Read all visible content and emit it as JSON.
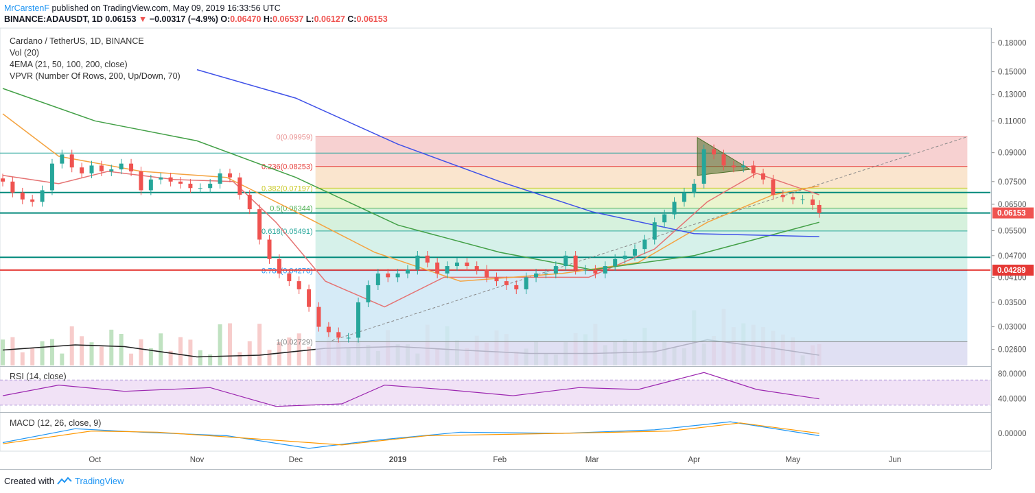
{
  "header": {
    "author": "MrCarstenF",
    "published_text": "published on TradingView.com, May 09, 2019 16:33:56 UTC"
  },
  "symbol_line": {
    "symbol": "BINANCE:ADAUSDT, 1D",
    "last": "0.06153",
    "change": "−0.00317 (−4.9%)",
    "open": "0.06470",
    "high": "0.06537",
    "low": "0.06127",
    "close": "0.06153",
    "o_label": "O:",
    "h_label": "H:",
    "l_label": "L:",
    "c_label": "C:"
  },
  "legend": {
    "title": "Cardano / TetherUS, 1D, BINANCE",
    "vol": "Vol (20)",
    "ema": "4EMA (21, 50, 100, 200, close)",
    "vpvr": "VPVR (Number Of Rows, 200, Up/Down, 70)"
  },
  "panels": {
    "rsi_label": "RSI (14, close)",
    "macd_label": "MACD (12, 26, close, 9)"
  },
  "footer": {
    "prefix": "Created with",
    "brand": "TradingView"
  },
  "colors": {
    "up": "#26a69a",
    "down": "#ef5350",
    "ema21": "#e57373",
    "ema50": "#f4a340",
    "ema100": "#43a047",
    "ema200": "#3f51e8",
    "volume_ma": "#212121",
    "rsi": "#9c27b0",
    "macd": "#2196f3",
    "signal": "#ff9800",
    "support": "#00897b",
    "resistance": "#e53935"
  },
  "chart_data": [
    {
      "type": "candlestick",
      "title": "Cardano / TetherUS, 1D, BINANCE",
      "scale": "log",
      "ylim": [
        0.0235,
        0.195
      ],
      "price_ticks": [
        "0.18000",
        "0.15000",
        "0.13000",
        "0.11000",
        "0.09000",
        "0.07500",
        "0.06500",
        "0.05500",
        "0.04700",
        "0.04100",
        "0.03500",
        "0.03000",
        "0.02600"
      ],
      "x_ticks": [
        "Oct",
        "Nov",
        "Dec",
        "2019",
        "Feb",
        "Mar",
        "Apr",
        "May",
        "Jun"
      ],
      "x_tick_dates": [
        "2018-10-01",
        "2018-11-01",
        "2018-12-01",
        "2019-01-01",
        "2019-02-01",
        "2019-03-01",
        "2019-04-01",
        "2019-05-01",
        "2019-06-01"
      ],
      "date_range": [
        "2018-09-03",
        "2019-06-30"
      ],
      "current_price": "0.06153",
      "marked_price": "0.04289",
      "closes": [
        [
          "2018-09-03",
          0.075
        ],
        [
          "2018-09-06",
          0.07
        ],
        [
          "2018-09-09",
          0.067
        ],
        [
          "2018-09-12",
          0.066
        ],
        [
          "2018-09-15",
          0.071
        ],
        [
          "2018-09-18",
          0.084
        ],
        [
          "2018-09-21",
          0.089
        ],
        [
          "2018-09-24",
          0.082
        ],
        [
          "2018-09-27",
          0.079
        ],
        [
          "2018-09-30",
          0.083
        ],
        [
          "2018-10-03",
          0.08
        ],
        [
          "2018-10-06",
          0.081
        ],
        [
          "2018-10-09",
          0.084
        ],
        [
          "2018-10-12",
          0.08
        ],
        [
          "2018-10-15",
          0.071
        ],
        [
          "2018-10-18",
          0.076
        ],
        [
          "2018-10-21",
          0.077
        ],
        [
          "2018-10-24",
          0.075
        ],
        [
          "2018-10-27",
          0.074
        ],
        [
          "2018-10-30",
          0.072
        ],
        [
          "2018-11-02",
          0.072
        ],
        [
          "2018-11-05",
          0.074
        ],
        [
          "2018-11-08",
          0.079
        ],
        [
          "2018-11-11",
          0.077
        ],
        [
          "2018-11-14",
          0.069
        ],
        [
          "2018-11-17",
          0.063
        ],
        [
          "2018-11-20",
          0.052
        ],
        [
          "2018-11-23",
          0.046
        ],
        [
          "2018-11-26",
          0.042
        ],
        [
          "2018-11-29",
          0.04
        ],
        [
          "2018-12-02",
          0.038
        ],
        [
          "2018-12-05",
          0.034
        ],
        [
          "2018-12-08",
          0.03
        ],
        [
          "2018-12-11",
          0.029
        ],
        [
          "2018-12-14",
          0.028
        ],
        [
          "2018-12-17",
          0.028
        ],
        [
          "2018-12-20",
          0.035
        ],
        [
          "2018-12-23",
          0.039
        ],
        [
          "2018-12-26",
          0.042
        ],
        [
          "2018-12-29",
          0.041
        ],
        [
          "2019-01-01",
          0.042
        ],
        [
          "2019-01-04",
          0.043
        ],
        [
          "2019-01-07",
          0.047
        ],
        [
          "2019-01-10",
          0.045
        ],
        [
          "2019-01-13",
          0.042
        ],
        [
          "2019-01-16",
          0.044
        ],
        [
          "2019-01-19",
          0.045
        ],
        [
          "2019-01-22",
          0.044
        ],
        [
          "2019-01-25",
          0.043
        ],
        [
          "2019-01-28",
          0.041
        ],
        [
          "2019-01-31",
          0.04
        ],
        [
          "2019-02-03",
          0.039
        ],
        [
          "2019-02-06",
          0.038
        ],
        [
          "2019-02-09",
          0.041
        ],
        [
          "2019-02-12",
          0.042
        ],
        [
          "2019-02-15",
          0.042
        ],
        [
          "2019-02-18",
          0.044
        ],
        [
          "2019-02-21",
          0.047
        ],
        [
          "2019-02-24",
          0.043
        ],
        [
          "2019-02-27",
          0.043
        ],
        [
          "2019-03-02",
          0.042
        ],
        [
          "2019-03-05",
          0.044
        ],
        [
          "2019-03-08",
          0.046
        ],
        [
          "2019-03-11",
          0.047
        ],
        [
          "2019-03-14",
          0.049
        ],
        [
          "2019-03-17",
          0.052
        ],
        [
          "2019-03-20",
          0.058
        ],
        [
          "2019-03-23",
          0.061
        ],
        [
          "2019-03-26",
          0.066
        ],
        [
          "2019-03-29",
          0.07
        ],
        [
          "2019-04-01",
          0.074
        ],
        [
          "2019-04-04",
          0.092
        ],
        [
          "2019-04-07",
          0.089
        ],
        [
          "2019-04-10",
          0.083
        ],
        [
          "2019-04-13",
          0.082
        ],
        [
          "2019-04-16",
          0.083
        ],
        [
          "2019-04-19",
          0.079
        ],
        [
          "2019-04-22",
          0.076
        ],
        [
          "2019-04-25",
          0.069
        ],
        [
          "2019-04-28",
          0.068
        ],
        [
          "2019-05-01",
          0.067
        ],
        [
          "2019-05-04",
          0.067
        ],
        [
          "2019-05-07",
          0.0647
        ],
        [
          "2019-05-09",
          0.06153
        ]
      ],
      "fibonacci": [
        {
          "label": "0(0.09959)",
          "value": 0.09959,
          "color": "#e98f8f"
        },
        {
          "label": "0.236(0.08253)",
          "value": 0.08253,
          "color": "#e53935"
        },
        {
          "label": "0.382(0.07197)",
          "value": 0.07197,
          "color": "#c8c820"
        },
        {
          "label": "0.5(0.06344)",
          "value": 0.06344,
          "color": "#4caf50"
        },
        {
          "label": "0.618(0.05491)",
          "value": 0.05491,
          "color": "#26a69a"
        },
        {
          "label": "0.786(0.04276)",
          "value": 0.04276,
          "color": "#2196f3"
        },
        {
          "label": "1(0.02729)",
          "value": 0.02729,
          "color": "#888888"
        }
      ],
      "fib_start_date": "2018-12-07",
      "fib_end_date": "2019-06-23",
      "horizontal_lines": [
        {
          "value": 0.0898,
          "color": "#26a69a"
        },
        {
          "value": 0.07,
          "color": "#00897b"
        },
        {
          "value": 0.0615,
          "color": "#00897b"
        },
        {
          "value": 0.0465,
          "color": "#00897b"
        },
        {
          "value": 0.0429,
          "color": "#e53935"
        }
      ],
      "ema": {
        "ema21": [
          [
            "2018-09-03",
            0.078
          ],
          [
            "2018-09-20",
            0.074
          ],
          [
            "2018-10-05",
            0.08
          ],
          [
            "2018-10-25",
            0.076
          ],
          [
            "2018-11-12",
            0.075
          ],
          [
            "2018-11-25",
            0.058
          ],
          [
            "2018-12-10",
            0.04
          ],
          [
            "2018-12-28",
            0.034
          ],
          [
            "2019-01-15",
            0.041
          ],
          [
            "2019-02-05",
            0.041
          ],
          [
            "2019-02-28",
            0.041
          ],
          [
            "2019-03-20",
            0.049
          ],
          [
            "2019-04-05",
            0.066
          ],
          [
            "2019-04-20",
            0.079
          ],
          [
            "2019-05-09",
            0.069
          ]
        ],
        "ema50": [
          [
            "2018-09-03",
            0.115
          ],
          [
            "2018-09-20",
            0.088
          ],
          [
            "2018-10-15",
            0.08
          ],
          [
            "2018-11-10",
            0.077
          ],
          [
            "2018-12-01",
            0.062
          ],
          [
            "2018-12-25",
            0.048
          ],
          [
            "2019-01-20",
            0.04
          ],
          [
            "2019-02-20",
            0.042
          ],
          [
            "2019-03-15",
            0.045
          ],
          [
            "2019-04-05",
            0.058
          ],
          [
            "2019-04-25",
            0.069
          ],
          [
            "2019-05-09",
            0.073
          ]
        ],
        "ema100": [
          [
            "2018-09-03",
            0.135
          ],
          [
            "2018-10-01",
            0.11
          ],
          [
            "2018-11-01",
            0.097
          ],
          [
            "2018-12-01",
            0.077
          ],
          [
            "2019-01-01",
            0.057
          ],
          [
            "2019-02-01",
            0.048
          ],
          [
            "2019-03-01",
            0.043
          ],
          [
            "2019-04-01",
            0.047
          ],
          [
            "2019-05-09",
            0.058
          ]
        ],
        "ema200": [
          [
            "2018-11-01",
            0.152
          ],
          [
            "2018-12-01",
            0.127
          ],
          [
            "2019-01-01",
            0.095
          ],
          [
            "2019-02-01",
            0.075
          ],
          [
            "2019-03-01",
            0.062
          ],
          [
            "2019-04-01",
            0.054
          ],
          [
            "2019-05-09",
            0.053
          ]
        ]
      },
      "triangle": [
        [
          "2019-04-02",
          0.099
        ],
        [
          "2019-04-02",
          0.078
        ],
        [
          "2019-04-18",
          0.081
        ]
      ],
      "trend_line": [
        [
          "2018-12-12",
          0.0275
        ],
        [
          "2019-06-23",
          0.0995
        ]
      ]
    },
    {
      "type": "bar",
      "title": "Vol (20)",
      "volume_ma": [
        [
          "2018-09-03",
          0.45
        ],
        [
          "2018-09-25",
          0.6
        ],
        [
          "2018-10-10",
          0.55
        ],
        [
          "2018-11-01",
          0.25
        ],
        [
          "2018-11-20",
          0.3
        ],
        [
          "2018-12-10",
          0.5
        ],
        [
          "2019-01-01",
          0.55
        ],
        [
          "2019-01-20",
          0.45
        ],
        [
          "2019-02-10",
          0.35
        ],
        [
          "2019-03-01",
          0.35
        ],
        [
          "2019-03-20",
          0.4
        ],
        [
          "2019-04-05",
          0.75
        ],
        [
          "2019-04-25",
          0.5
        ],
        [
          "2019-05-09",
          0.3
        ]
      ]
    },
    {
      "type": "line",
      "title": "RSI (14, close)",
      "y_ticks": [
        "80.0000",
        "40.0000"
      ],
      "band": [
        30,
        70
      ],
      "series": [
        {
          "values": [
            [
              "2018-09-03",
              45
            ],
            [
              "2018-09-20",
              62
            ],
            [
              "2018-10-10",
              52
            ],
            [
              "2018-11-05",
              58
            ],
            [
              "2018-11-25",
              28
            ],
            [
              "2018-12-15",
              32
            ],
            [
              "2018-12-28",
              62
            ],
            [
              "2019-01-15",
              55
            ],
            [
              "2019-02-05",
              45
            ],
            [
              "2019-02-25",
              58
            ],
            [
              "2019-03-15",
              55
            ],
            [
              "2019-04-04",
              82
            ],
            [
              "2019-04-20",
              55
            ],
            [
              "2019-05-09",
              40
            ]
          ]
        }
      ]
    },
    {
      "type": "line",
      "title": "MACD (12, 26, close, 9)",
      "y_ticks": [
        "0.00000"
      ],
      "series": [
        {
          "values": [
            [
              "2018-09-03",
              -0.008
            ],
            [
              "2018-09-25",
              0.004
            ],
            [
              "2018-10-15",
              0.001
            ],
            [
              "2018-11-10",
              -0.002
            ],
            [
              "2018-12-05",
              -0.013
            ],
            [
              "2018-12-25",
              -0.006
            ],
            [
              "2019-01-20",
              0.001
            ],
            [
              "2019-02-20",
              0.0
            ],
            [
              "2019-03-20",
              0.003
            ],
            [
              "2019-04-12",
              0.01
            ],
            [
              "2019-05-09",
              -0.002
            ]
          ]
        },
        {
          "values": [
            [
              "2018-09-03",
              -0.009
            ],
            [
              "2018-09-30",
              0.002
            ],
            [
              "2018-10-20",
              0.001
            ],
            [
              "2018-11-20",
              -0.005
            ],
            [
              "2018-12-15",
              -0.01
            ],
            [
              "2019-01-10",
              -0.002
            ],
            [
              "2019-02-20",
              0.0
            ],
            [
              "2019-03-25",
              0.002
            ],
            [
              "2019-04-15",
              0.009
            ],
            [
              "2019-05-09",
              0.0
            ]
          ]
        }
      ]
    }
  ]
}
